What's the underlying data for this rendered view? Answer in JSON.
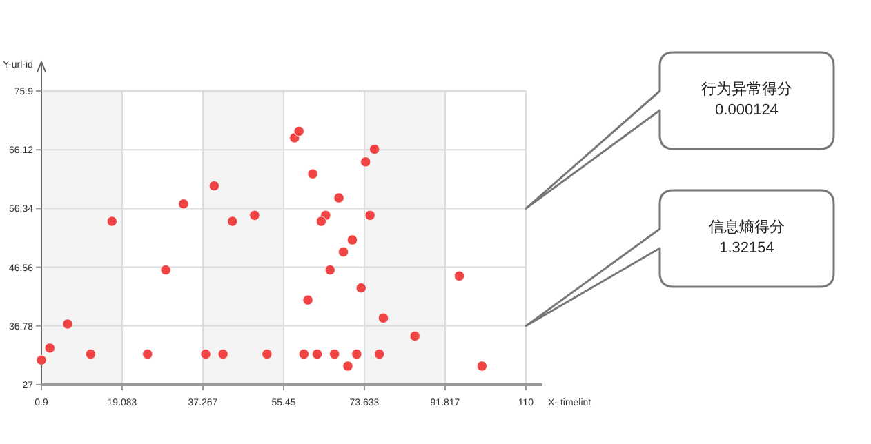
{
  "chart_data": {
    "type": "scatter",
    "xlabel": "X- timelint",
    "ylabel": "Y-url-id",
    "xlim": [
      0.9,
      110
    ],
    "xticks": [
      0.9,
      19.083,
      37.267,
      55.45,
      73.633,
      91.817,
      110
    ],
    "ylim": [
      27,
      75.9
    ],
    "yticks": [
      27,
      36.78,
      46.56,
      56.34,
      66.12,
      75.9
    ],
    "grid": true,
    "marker": "circle",
    "bands": [
      {
        "axis": "x",
        "from": 0.9,
        "to": 19.083,
        "color": "#f4f4f4"
      },
      {
        "axis": "x",
        "from": 37.267,
        "to": 55.45,
        "color": "#f4f4f4"
      },
      {
        "axis": "x",
        "from": 73.633,
        "to": 91.817,
        "color": "#f4f4f4"
      }
    ],
    "annotations": [
      "行为异常得分",
      "0.000124",
      "信息熵得分",
      "1.32154"
    ],
    "series": [
      {
        "color": "#f04444",
        "x": [
          0.9,
          2.8,
          6.8,
          12.0,
          16.8,
          24.8,
          28.9,
          32.9,
          37.9,
          39.8,
          41.8,
          43.9,
          48.9,
          51.7,
          57.9,
          58.9,
          75.9,
          73.9,
          62.0,
          67.9,
          64.9,
          63.9,
          74.9,
          70.9,
          68.9,
          65.9,
          95.0,
          72.9,
          60.9,
          77.9,
          85.0,
          60.0,
          63.0,
          66.9,
          71.9,
          77.0,
          69.9,
          100.1
        ],
        "values": [
          31.1,
          33.1,
          37.1,
          32.1,
          54.2,
          32.1,
          46.1,
          57.1,
          32.1,
          60.1,
          32.1,
          54.2,
          55.2,
          32.1,
          68.1,
          69.2,
          66.2,
          64.1,
          62.1,
          58.1,
          55.2,
          54.2,
          55.2,
          51.1,
          49.1,
          46.1,
          45.1,
          43.1,
          41.1,
          38.1,
          35.1,
          32.1,
          32.1,
          32.1,
          32.1,
          32.1,
          30.1,
          30.1
        ]
      }
    ]
  }
}
